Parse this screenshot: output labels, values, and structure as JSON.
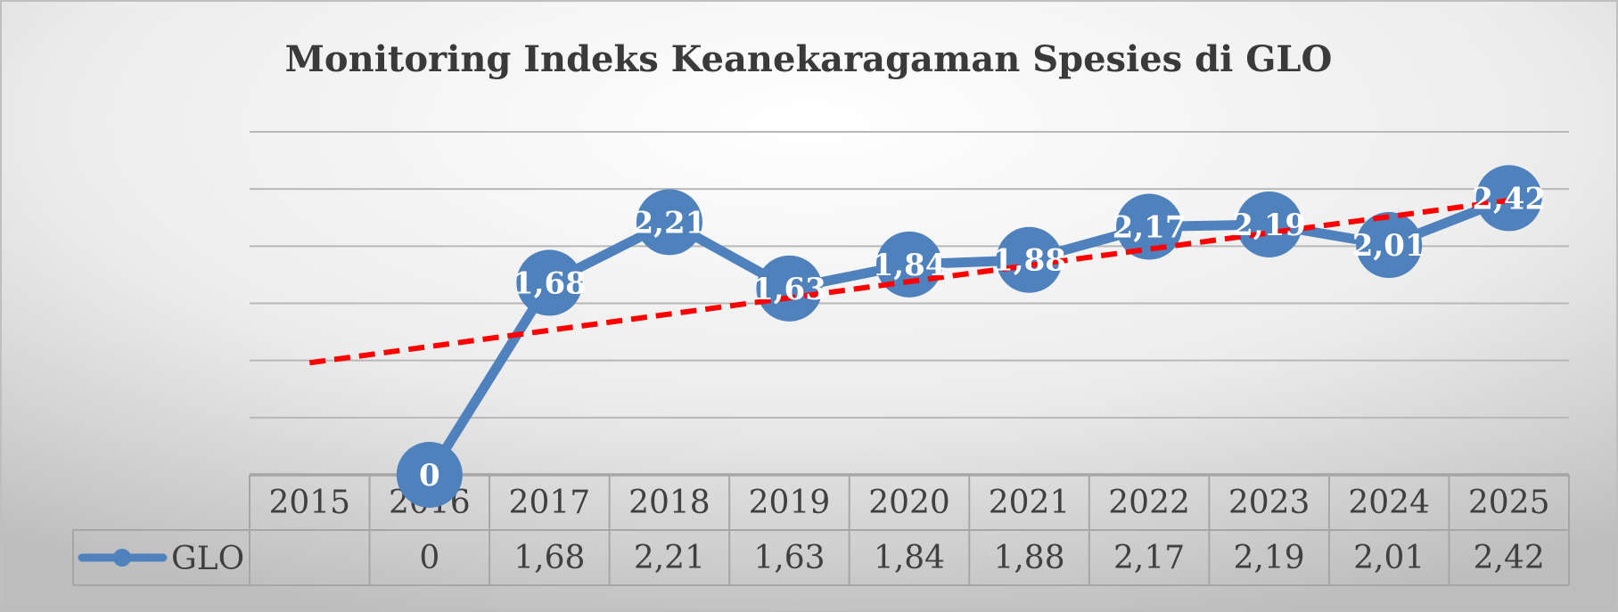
{
  "chart_data": {
    "type": "line",
    "title": "Monitoring Indeks Keanekaragaman Spesies di GLO",
    "categories": [
      "2015",
      "2016",
      "2017",
      "2018",
      "2019",
      "2020",
      "2021",
      "2022",
      "2023",
      "2024",
      "2025"
    ],
    "series": [
      {
        "name": "GLO",
        "values": [
          null,
          0,
          1.68,
          2.21,
          1.63,
          1.84,
          1.88,
          2.17,
          2.19,
          2.01,
          2.42
        ],
        "labels": [
          "",
          "0",
          "1,68",
          "2,21",
          "1,63",
          "1,84",
          "1,88",
          "2,17",
          "2,19",
          "2,01",
          "2,42"
        ],
        "color": "#4f81bd"
      }
    ],
    "trendline": {
      "type": "linear",
      "color": "#ff0000",
      "style": "dashed",
      "start": 0.98,
      "end": 2.4
    },
    "ylim": [
      0,
      3
    ],
    "y_gridline_step": 0.5,
    "data_table": true,
    "legend": "data-table"
  }
}
